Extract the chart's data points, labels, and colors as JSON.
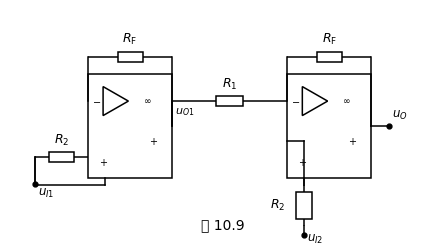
{
  "figure_width": 4.45,
  "figure_height": 2.49,
  "dpi": 100,
  "bg_color": "#ffffff",
  "line_color": "#000000",
  "line_width": 1.1,
  "caption": "图 10.9",
  "caption_fontsize": 10,
  "rf1_label": "$R_{\\mathrm{F}}$",
  "rf2_label": "$R_{\\mathrm{F}}$",
  "r1_label": "$R_{1}$",
  "r2_left_label": "$R_{2}$",
  "r2_right_label": "$R_{2}$",
  "u_o1_label": "$u_{O1}$",
  "u_o_label": "$u_{O}$",
  "u_i1_label": "$u_{I1}$",
  "u_i2_label": "$u_{I2}$"
}
